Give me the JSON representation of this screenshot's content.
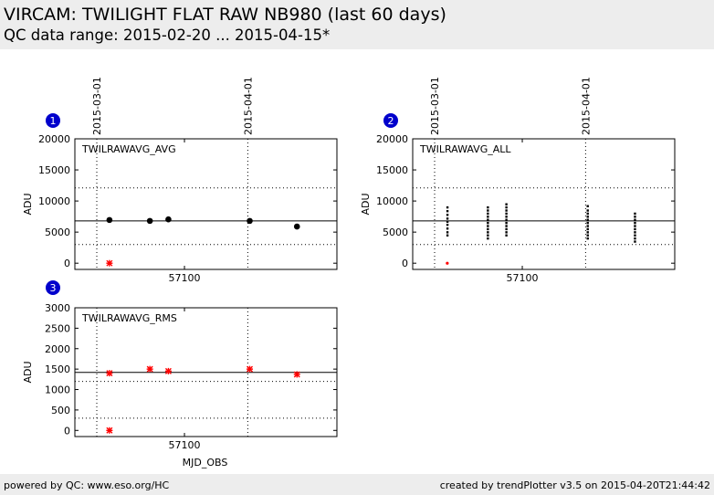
{
  "header": {
    "title": "VIRCAM: TWILIGHT FLAT RAW NB980 (last 60 days)",
    "subtitle": "QC data range: 2015-02-20 ... 2015-04-15*"
  },
  "footer": {
    "left": "powered by QC: www.eso.org/HC",
    "right": "created by trendPlotter v3.5 on 2015-04-20T21:44:42"
  },
  "colors": {
    "badge": "#0000cc",
    "normal_marker": "#000000",
    "outlier_marker": "#ff0000",
    "header_bg": "#ededed"
  },
  "chart_data": [
    {
      "id": 1,
      "badge": "1",
      "type": "scatter",
      "label": "TWILRAWAVG_AVG",
      "ylabel": "ADU",
      "xlabel": "",
      "xlim": [
        57077.5,
        57131.3
      ],
      "ylim": [
        -1000,
        20000
      ],
      "yticks": [
        0,
        5000,
        10000,
        15000,
        20000
      ],
      "xticks": [
        {
          "value": 57100,
          "label": "57100"
        }
      ],
      "date_lines": [
        {
          "mjd": 57082,
          "label": "2015-03-01"
        },
        {
          "mjd": 57113,
          "label": "2015-04-01"
        }
      ],
      "solid_line": 6800,
      "dotted_lines": [
        12100,
        3000
      ],
      "grid": false,
      "marker": "dot",
      "points": [
        {
          "x": 57084.6,
          "y": 6950,
          "outlier": false
        },
        {
          "x": 57092.9,
          "y": 6800,
          "outlier": false
        },
        {
          "x": 57096.7,
          "y": 7050,
          "outlier": false
        },
        {
          "x": 57113.4,
          "y": 6800,
          "outlier": false
        },
        {
          "x": 57123.1,
          "y": 5900,
          "outlier": false
        },
        {
          "x": 57084.6,
          "y": 0,
          "outlier": true
        }
      ]
    },
    {
      "id": 2,
      "badge": "2",
      "type": "scatter",
      "label": "TWILRAWAVG_ALL",
      "ylabel": "ADU",
      "xlabel": "",
      "xlim": [
        57077.5,
        57131.3
      ],
      "ylim": [
        -1000,
        20000
      ],
      "yticks": [
        0,
        5000,
        10000,
        15000,
        20000
      ],
      "xticks": [
        {
          "value": 57100,
          "label": "57100"
        }
      ],
      "date_lines": [
        {
          "mjd": 57082,
          "label": "2015-03-01"
        },
        {
          "mjd": 57113,
          "label": "2015-04-01"
        }
      ],
      "solid_line": 6800,
      "dotted_lines": [
        12100,
        3000
      ],
      "grid": false,
      "marker": "small",
      "columns": [
        {
          "x": 57084.6,
          "values": [
            4500,
            5000,
            5600,
            6200,
            6700,
            7200,
            7800,
            8400,
            9000
          ]
        },
        {
          "x": 57092.9,
          "values": [
            4000,
            4500,
            5000,
            5500,
            6000,
            6500,
            7000,
            7500,
            8000,
            8500,
            9000
          ]
        },
        {
          "x": 57096.7,
          "values": [
            4500,
            5000,
            5500,
            6000,
            6500,
            7000,
            7500,
            8000,
            8500,
            9000,
            9500
          ]
        },
        {
          "x": 57113.4,
          "values": [
            4000,
            4500,
            5000,
            5500,
            6000,
            6500,
            7000,
            7500,
            8000,
            8500,
            9200
          ]
        },
        {
          "x": 57123.1,
          "values": [
            3500,
            4000,
            4500,
            5000,
            5500,
            6000,
            6500,
            7000,
            7500,
            8000
          ]
        }
      ],
      "points": [
        {
          "x": 57084.6,
          "y": 0,
          "outlier": true
        }
      ]
    },
    {
      "id": 3,
      "badge": "3",
      "type": "scatter",
      "label": "TWILRAWAVG_RMS",
      "ylabel": "ADU",
      "xlabel": "MJD_OBS",
      "xlim": [
        57077.5,
        57131.3
      ],
      "ylim": [
        -150,
        3000
      ],
      "yticks": [
        0,
        500,
        1000,
        1500,
        2000,
        2500,
        3000
      ],
      "xticks": [
        {
          "value": 57100,
          "label": "57100"
        }
      ],
      "date_lines": [
        {
          "mjd": 57082,
          "label": ""
        },
        {
          "mjd": 57113,
          "label": ""
        }
      ],
      "solid_line": 1420,
      "dotted_lines": [
        1200,
        300
      ],
      "grid": false,
      "marker": "star",
      "points": [
        {
          "x": 57084.6,
          "y": 1400,
          "outlier": true
        },
        {
          "x": 57092.9,
          "y": 1500,
          "outlier": true
        },
        {
          "x": 57096.7,
          "y": 1450,
          "outlier": true
        },
        {
          "x": 57113.4,
          "y": 1500,
          "outlier": true
        },
        {
          "x": 57123.1,
          "y": 1370,
          "outlier": true
        },
        {
          "x": 57084.6,
          "y": 0,
          "outlier": true
        }
      ]
    }
  ]
}
